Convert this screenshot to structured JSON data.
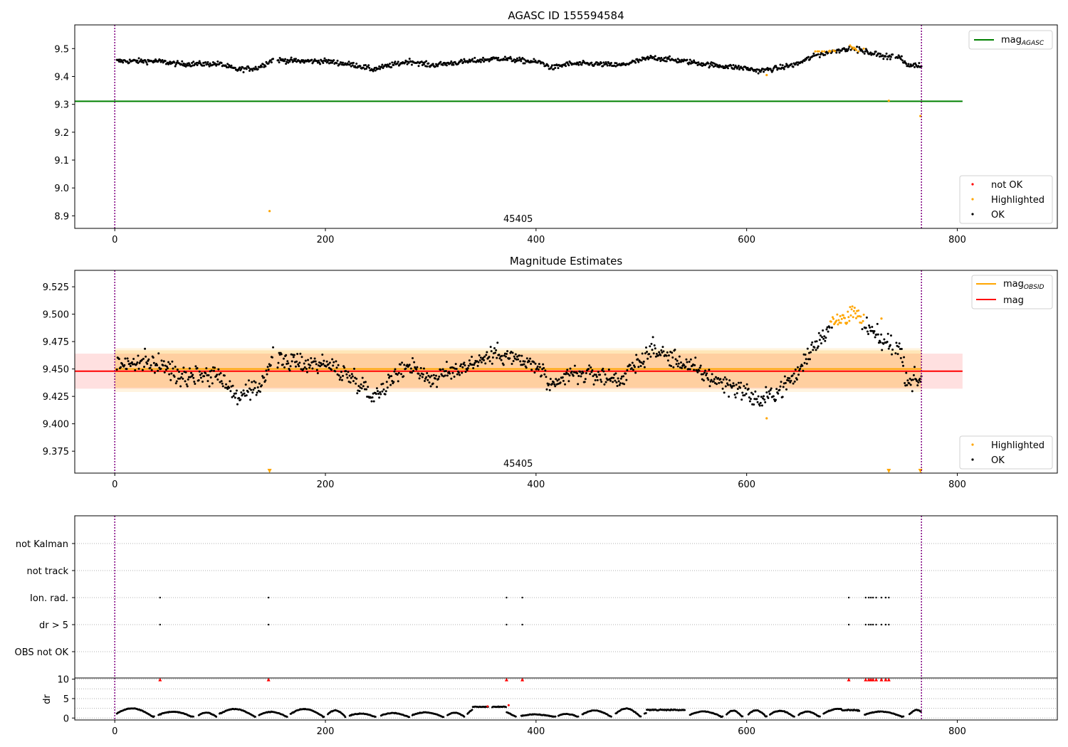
{
  "chart_data": [
    {
      "type": "scatter",
      "title": "AGASC ID 155594584",
      "xlabel": "",
      "ylabel": "",
      "xlim": [
        -38,
        895
      ],
      "ylim": [
        8.855,
        9.585
      ],
      "xticks": [
        0,
        200,
        400,
        600,
        800
      ],
      "yticks": [
        8.9,
        9.0,
        9.1,
        9.2,
        9.3,
        9.4,
        9.5
      ],
      "ytick_labels": [
        "8.9",
        "9.0",
        "9.1",
        "9.2",
        "9.3",
        "9.4",
        "9.5"
      ],
      "vlines": [
        0,
        766
      ],
      "obsid_label": {
        "text": "45405",
        "x": 383
      },
      "hline": {
        "name": "mag",
        "subscript": "AGASC",
        "y": 9.311,
        "x": [
          -38,
          805
        ],
        "color": "#008000"
      },
      "series_colors": {
        "not_ok": "#ff0000",
        "highlighted": "#ffa500",
        "ok": "#000000"
      },
      "legend_lines": [
        {
          "name": "mag",
          "subscript": "AGASC",
          "color": "#008000"
        }
      ],
      "legend_lines_position": "top-right",
      "legend_points": [
        {
          "name": "not OK",
          "color": "#ff0000"
        },
        {
          "name": "Highlighted",
          "color": "#ffa500"
        },
        {
          "name": "OK",
          "color": "#000000"
        }
      ],
      "legend_points_position": "bottom-right",
      "highlighted_points": [
        [
          147,
          8.917
        ],
        [
          619,
          9.405
        ],
        [
          735,
          9.313
        ],
        [
          765,
          9.258
        ]
      ],
      "grid": false
    },
    {
      "type": "scatter",
      "title": "Magnitude Estimates",
      "xlabel": "",
      "ylabel": "",
      "xlim": [
        -38,
        895
      ],
      "ylim": [
        9.355,
        9.54
      ],
      "xticks": [
        0,
        200,
        400,
        600,
        800
      ],
      "yticks": [
        9.375,
        9.4,
        9.425,
        9.45,
        9.475,
        9.5,
        9.525
      ],
      "ytick_labels": [
        "9.375",
        "9.400",
        "9.425",
        "9.450",
        "9.475",
        "9.500",
        "9.525"
      ],
      "vlines": [
        0,
        766
      ],
      "obsid_label": {
        "text": "45405",
        "x": 383
      },
      "mag_line": {
        "name": "mag",
        "y": 9.448,
        "band": [
          9.432,
          9.464
        ],
        "x": [
          -38,
          805
        ],
        "color": "#ff0000"
      },
      "mag_obsid_line": {
        "name": "mag",
        "subscript": "OBSID",
        "y": 9.45,
        "band": [
          9.433,
          9.467
        ],
        "band_outer": [
          9.429,
          9.469
        ],
        "x": [
          0,
          766
        ],
        "color": "#ffa500"
      },
      "legend_lines": [
        {
          "name": "mag",
          "subscript": "OBSID",
          "color": "#ffa500"
        },
        {
          "name": "mag",
          "color": "#ff0000"
        }
      ],
      "legend_lines_position": "top-right",
      "legend_points": [
        {
          "name": "Highlighted",
          "color": "#ffa500"
        },
        {
          "name": "OK",
          "color": "#000000"
        }
      ],
      "legend_points_position": "bottom-right",
      "highlighted_points": [
        [
          619,
          9.405
        ],
        [
          728,
          9.496
        ]
      ],
      "out_of_range_markers": [
        147,
        735,
        765
      ],
      "grid": false
    },
    {
      "type": "scatter",
      "title": "",
      "xlabel": "",
      "ylabel": "",
      "xlim": [
        -38,
        895
      ],
      "categories": [
        "OBS not OK",
        "dr > 5",
        "Ion. rad.",
        "not track",
        "not Kalman"
      ],
      "flag_points": {
        "dr > 5": [
          43,
          146,
          372,
          387,
          697,
          713,
          716,
          718,
          720,
          723,
          728,
          732,
          735
        ],
        "Ion. rad.": [
          43,
          146,
          372,
          387,
          697,
          713,
          716,
          718,
          720,
          723,
          728,
          732,
          735
        ]
      },
      "vlines": [
        0,
        766
      ],
      "grid": true
    },
    {
      "type": "scatter",
      "title": "",
      "xlabel": "",
      "ylabel": "dr",
      "xlim": [
        -38,
        895
      ],
      "ylim": [
        -0.5,
        10.3
      ],
      "xticks": [
        0,
        200,
        400,
        600,
        800
      ],
      "yticks": [
        0,
        5,
        10
      ],
      "ytick_labels": [
        "0",
        "5",
        "10"
      ],
      "vlines": [
        0,
        766
      ],
      "clipped_markers": [
        43,
        146,
        372,
        387,
        697,
        713,
        716,
        718,
        720,
        723,
        728,
        732,
        735
      ],
      "red_points": [
        [
          354,
          3.0
        ],
        [
          374,
          3.3
        ]
      ],
      "grid": true
    }
  ]
}
